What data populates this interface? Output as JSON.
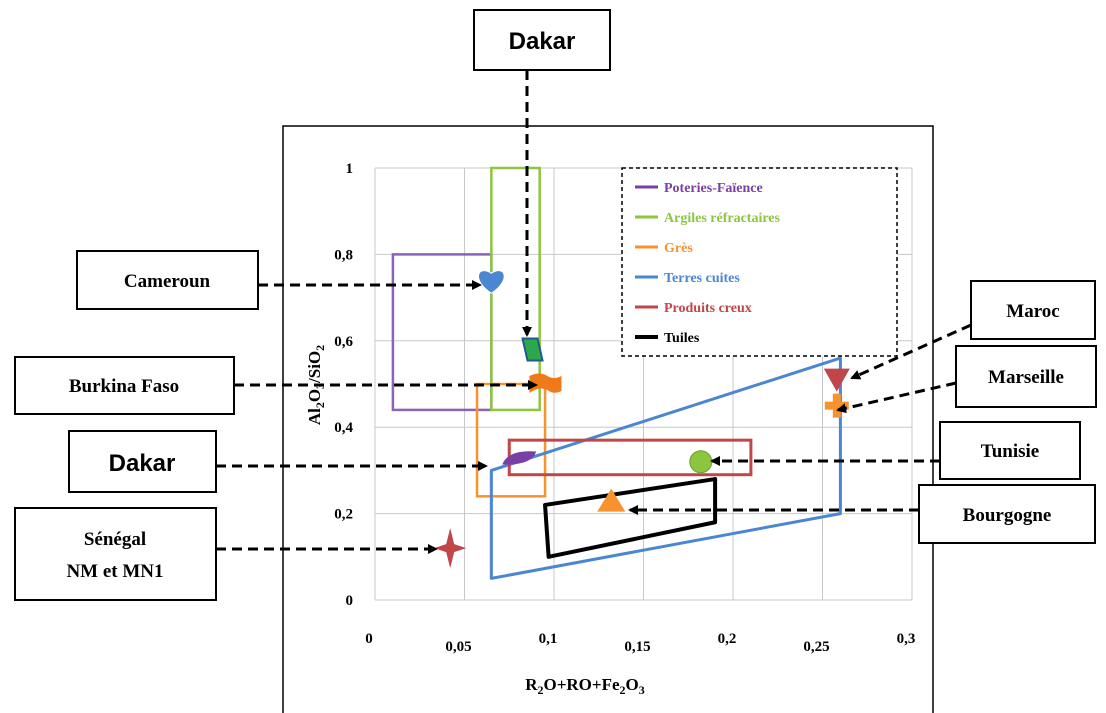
{
  "chart_data": {
    "type": "scatter",
    "xlabel": "R₂O+RO+Fe₂O₃",
    "ylabel": "Al₂O₃/SiO₂",
    "xlim": [
      0,
      0.3
    ],
    "ylim": [
      0,
      1
    ],
    "x_ticks": [
      "0",
      "0,05",
      "0,1",
      "0,15",
      "0,2",
      "0,25",
      "0,3"
    ],
    "y_ticks": [
      "0",
      "0,2",
      "0,4",
      "0,6",
      "0,8",
      "1"
    ],
    "grid": true,
    "legend_position": "top-right",
    "legend": [
      {
        "label": "Poteries-Faïence",
        "color": "#7a3fa3"
      },
      {
        "label": "Argiles réfractaires",
        "color": "#8cc63f"
      },
      {
        "label": "Grès",
        "color": "#f7922e"
      },
      {
        "label": "Terres cuites",
        "color": "#4a86d1"
      },
      {
        "label": "Produits creux",
        "color": "#c0464a"
      },
      {
        "label": "Tuiles",
        "color": "#000000"
      }
    ],
    "regions": [
      {
        "name": "Poteries-Faïence",
        "shape": "rect",
        "x": [
          0.01,
          0.065
        ],
        "y": [
          0.44,
          0.8
        ],
        "color": "#8a62b8"
      },
      {
        "name": "Argiles réfractaires",
        "shape": "rect",
        "x": [
          0.065,
          0.092
        ],
        "y": [
          0.44,
          1.0
        ],
        "color": "#8cc63f"
      },
      {
        "name": "Grès",
        "shape": "rect",
        "x": [
          0.057,
          0.095
        ],
        "y": [
          0.24,
          0.5
        ],
        "color": "#f7922e"
      },
      {
        "name": "Terres cuites",
        "shape": "polygon",
        "points": [
          [
            0.065,
            0.05
          ],
          [
            0.26,
            0.2
          ],
          [
            0.26,
            0.56
          ],
          [
            0.065,
            0.3
          ]
        ],
        "color": "#4a86d1"
      },
      {
        "name": "Produits creux",
        "shape": "rect",
        "x": [
          0.075,
          0.21
        ],
        "y": [
          0.29,
          0.37
        ],
        "color": "#c0464a"
      },
      {
        "name": "Tuiles",
        "shape": "polygon",
        "points": [
          [
            0.095,
            0.22
          ],
          [
            0.19,
            0.28
          ],
          [
            0.19,
            0.18
          ],
          [
            0.097,
            0.1
          ]
        ],
        "color": "#000000"
      }
    ],
    "points": [
      {
        "name": "Cameroun",
        "x": 0.065,
        "y": 0.74,
        "marker": "heart",
        "color": "#4a86d1"
      },
      {
        "name": "Dakar",
        "x": 0.088,
        "y": 0.58,
        "marker": "parallelogram",
        "color": "#2ca84a"
      },
      {
        "name": "Burkina Faso",
        "x": 0.093,
        "y": 0.5,
        "marker": "flag",
        "color": "#f07a1a"
      },
      {
        "name": "Dakar",
        "x": 0.08,
        "y": 0.33,
        "marker": "ellipse",
        "color": "#7a3fa3"
      },
      {
        "name": "Sénégal NM et MN1",
        "x": 0.042,
        "y": 0.12,
        "marker": "star",
        "color": "#c0464a"
      },
      {
        "name": "Tunisie",
        "x": 0.182,
        "y": 0.32,
        "marker": "circle",
        "color": "#8cc63f"
      },
      {
        "name": "Bourgogne",
        "x": 0.132,
        "y": 0.23,
        "marker": "triangle",
        "color": "#f7922e"
      },
      {
        "name": "Maroc",
        "x": 0.258,
        "y": 0.51,
        "marker": "triangle-down",
        "color": "#c0464a"
      },
      {
        "name": "Marseille",
        "x": 0.258,
        "y": 0.45,
        "marker": "cross",
        "color": "#f7922e"
      }
    ]
  },
  "callouts": {
    "dakar_top": "Dakar",
    "cameroun": "Cameroun",
    "burkina": "Burkina Faso",
    "dakar_left": "Dakar",
    "senegal_line1": "Sénégal",
    "senegal_line2": "NM et MN1",
    "maroc": "Maroc",
    "marseille": "Marseille",
    "tunisie": "Tunisie",
    "bourgogne": "Bourgogne"
  }
}
